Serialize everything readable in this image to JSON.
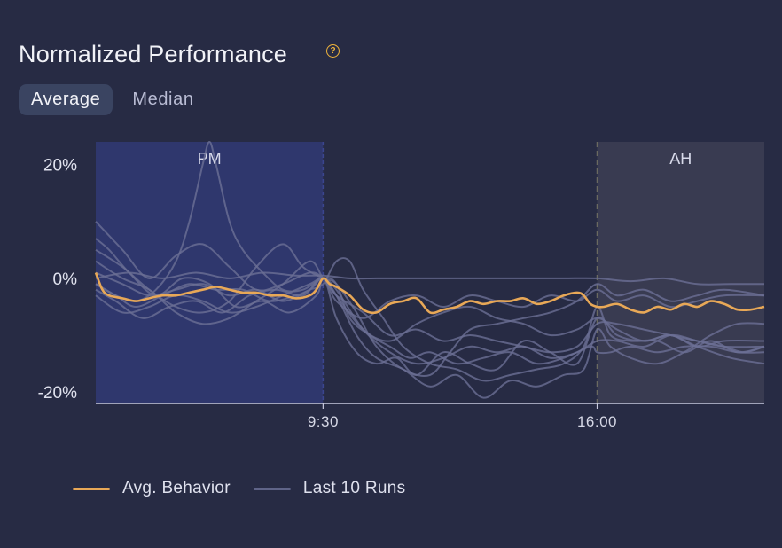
{
  "header": {
    "title": "Normalized Performance",
    "help_icon": "help-circle-icon"
  },
  "tabs": [
    {
      "label": "Average",
      "active": true
    },
    {
      "label": "Median",
      "active": false
    }
  ],
  "colors": {
    "background": "#272b44",
    "avg_line": "#e8a857",
    "runs_line": "#6b6f95",
    "pm_band": "#2f3870",
    "ah_band": "#3a3c52",
    "axis": "#c9cbe0"
  },
  "chart_data": {
    "type": "line",
    "title": "Normalized Performance",
    "xlabel": "",
    "ylabel": "",
    "ylim": [
      -22,
      24
    ],
    "xlim": [
      0,
      100
    ],
    "yticks": [
      {
        "value": 20,
        "label": "20%"
      },
      {
        "value": 0,
        "label": "0%"
      },
      {
        "value": -20,
        "label": "-20%"
      }
    ],
    "xticks": [
      {
        "value": 34,
        "label": "9:30"
      },
      {
        "value": 75,
        "label": "16:00"
      }
    ],
    "regions": [
      {
        "label": "PM",
        "x_start": 0,
        "x_end": 34
      },
      {
        "label": "AH",
        "x_start": 75,
        "x_end": 100
      }
    ],
    "legend": [
      "Avg. Behavior",
      "Last 10 Runs"
    ],
    "series": [
      {
        "name": "Avg. Behavior",
        "kind": "avg",
        "x": [
          0,
          1,
          2,
          4,
          6,
          8,
          10,
          12,
          14,
          16,
          18,
          20,
          22,
          24,
          26,
          28,
          30,
          32,
          33,
          34,
          35,
          36,
          38,
          40,
          42,
          44,
          46,
          48,
          50,
          52,
          54,
          56,
          58,
          60,
          62,
          64,
          66,
          68,
          70,
          72,
          73,
          74,
          75,
          76,
          78,
          80,
          82,
          84,
          86,
          88,
          90,
          92,
          94,
          96,
          98,
          100
        ],
        "y": [
          1,
          -2,
          -3,
          -3.5,
          -4,
          -3.5,
          -3,
          -3,
          -2.5,
          -2,
          -1.5,
          -2,
          -2.5,
          -2.5,
          -3,
          -3,
          -3.5,
          -3,
          -2,
          0,
          -1,
          -1.5,
          -3,
          -5.5,
          -6,
          -4.5,
          -4,
          -3.5,
          -6,
          -5.5,
          -5,
          -4,
          -4.5,
          -4,
          -4,
          -3.5,
          -4.5,
          -4,
          -3,
          -2.5,
          -3,
          -4.5,
          -5,
          -5,
          -4.5,
          -5.5,
          -6,
          -5,
          -5.5,
          -4.5,
          -5,
          -4,
          -4.5,
          -5.5,
          -5.5,
          -5
        ]
      },
      {
        "name": "Run 1",
        "kind": "run",
        "x": [
          0,
          3,
          6,
          9,
          12,
          14,
          16,
          17,
          18,
          20,
          22,
          25,
          28,
          31,
          34,
          36,
          38,
          41,
          44,
          47,
          50,
          54,
          58,
          62,
          66,
          70,
          74,
          75,
          77,
          80,
          84,
          88,
          92,
          96,
          100
        ],
        "y": [
          -1,
          -3,
          -4,
          -2,
          3,
          10,
          20,
          24,
          20,
          10,
          5,
          1,
          -2,
          -2,
          0,
          -1,
          -7,
          -10,
          -12,
          -14,
          -13,
          -15,
          -14,
          -13,
          -15,
          -14,
          -12,
          -13,
          -13,
          -12,
          -13,
          -12,
          -12,
          -13,
          -13
        ]
      },
      {
        "name": "Run 2",
        "kind": "run",
        "x": [
          0,
          4,
          8,
          12,
          16,
          20,
          24,
          28,
          32,
          34,
          36,
          40,
          44,
          48,
          52,
          56,
          60,
          64,
          68,
          72,
          75,
          78,
          82,
          86,
          90,
          94,
          97,
          100
        ],
        "y": [
          10,
          5,
          0,
          4,
          6,
          2,
          -2,
          -1,
          1,
          0,
          -3,
          -6,
          -10,
          -9,
          -11,
          -10,
          -11,
          -12,
          -13,
          -12,
          -8,
          -8,
          -9,
          -10,
          -11,
          -12,
          -13,
          -12
        ]
      },
      {
        "name": "Run 3",
        "kind": "run",
        "x": [
          0,
          5,
          10,
          15,
          20,
          25,
          30,
          34,
          38,
          42,
          46,
          50,
          55,
          60,
          65,
          70,
          75,
          80,
          85,
          90,
          95,
          100
        ],
        "y": [
          0,
          1,
          0,
          1,
          0,
          1,
          0.5,
          0.5,
          0,
          0,
          0,
          0,
          0,
          0,
          0,
          0,
          0,
          -0.5,
          0,
          -1,
          -1,
          -1
        ]
      },
      {
        "name": "Run 4",
        "kind": "run",
        "x": [
          0,
          4,
          8,
          12,
          16,
          20,
          24,
          28,
          31,
          34,
          36,
          39,
          42,
          46,
          50,
          53,
          56,
          60,
          64,
          68,
          72,
          75,
          78,
          82,
          86,
          90,
          94,
          100
        ],
        "y": [
          5,
          2,
          -2,
          -5,
          -6,
          -4,
          2,
          6,
          2,
          0,
          -1,
          -6,
          -12,
          -16,
          -17,
          -13,
          -9,
          -8,
          -7,
          -6,
          -4,
          -1,
          -3,
          -2,
          -4,
          -3,
          -2,
          -3
        ]
      },
      {
        "name": "Run 5",
        "kind": "run",
        "x": [
          0,
          4,
          8,
          12,
          16,
          20,
          24,
          28,
          32,
          34,
          36,
          40,
          44,
          48,
          52,
          56,
          60,
          64,
          68,
          72,
          75,
          78,
          82,
          86,
          90,
          94,
          100
        ],
        "y": [
          -3,
          -6,
          -5,
          -3,
          -4,
          -6,
          -5,
          -3,
          -1,
          0,
          -2,
          -9,
          -13,
          -15,
          -14,
          -12,
          -13,
          -12,
          -14,
          -13,
          -11,
          -11,
          -12,
          -10,
          -11,
          -12,
          -12
        ]
      },
      {
        "name": "Run 6",
        "kind": "run",
        "x": [
          0,
          3,
          7,
          11,
          15,
          19,
          23,
          27,
          31,
          34,
          36,
          39,
          42,
          45,
          48,
          52,
          56,
          60,
          64,
          68,
          72,
          75,
          78,
          82,
          86,
          90,
          95,
          100
        ],
        "y": [
          -2,
          -4,
          -7,
          -5,
          -4,
          -6,
          -3,
          -2,
          -3,
          0,
          -7,
          -13,
          -15,
          -14,
          -17,
          -13,
          -15,
          -16,
          -11,
          -13,
          -15,
          -7,
          -10,
          -11,
          -10,
          -12,
          -14,
          -15
        ]
      },
      {
        "name": "Run 7",
        "kind": "run",
        "x": [
          0,
          4,
          8,
          12,
          16,
          20,
          24,
          28,
          32,
          34,
          36,
          40,
          44,
          48,
          52,
          56,
          60,
          64,
          68,
          72,
          75,
          78,
          82,
          86,
          90,
          94,
          100
        ],
        "y": [
          1,
          -1,
          -3,
          -2,
          -1,
          -3,
          -2,
          -4,
          -2,
          0,
          -4,
          -7,
          -4,
          -3,
          -5,
          -3,
          -4,
          -5,
          -3,
          -4,
          -2,
          -4,
          -3,
          -5,
          -4,
          -3,
          -3
        ]
      },
      {
        "name": "Run 8",
        "kind": "run",
        "x": [
          0,
          3,
          6,
          10,
          14,
          18,
          22,
          26,
          30,
          32,
          34,
          36,
          38,
          40,
          43,
          46,
          50,
          54,
          58,
          62,
          66,
          70,
          73,
          75,
          77,
          80,
          84,
          88,
          92,
          96,
          100
        ],
        "y": [
          -1,
          -3,
          -5,
          -3,
          -1,
          -2,
          -2,
          -4,
          -3,
          -2,
          -1,
          3,
          3,
          -2,
          -7,
          -12,
          -15,
          -16,
          -18,
          -17,
          -16,
          -15,
          -12,
          -5,
          -10,
          -11,
          -11,
          -13,
          -11,
          -13,
          -12
        ]
      },
      {
        "name": "Run 9",
        "kind": "run",
        "x": [
          0,
          2,
          5,
          9,
          13,
          17,
          21,
          25,
          29,
          33,
          34,
          36,
          39,
          42,
          46,
          50,
          54,
          58,
          62,
          66,
          70,
          73,
          75,
          77,
          80,
          84,
          88,
          92,
          96,
          100
        ],
        "y": [
          7,
          5,
          1,
          -3,
          0,
          -1,
          -5,
          -4,
          -6,
          -3,
          0,
          -3,
          -10,
          -14,
          -16,
          -19,
          -17,
          -21,
          -18,
          -19,
          -17,
          -16,
          -9,
          -12,
          -14,
          -15,
          -13,
          -10,
          -8,
          -8
        ]
      },
      {
        "name": "Run 10",
        "kind": "run",
        "x": [
          0,
          4,
          8,
          12,
          16,
          20,
          24,
          28,
          32,
          34,
          36,
          40,
          44,
          48,
          52,
          56,
          60,
          64,
          68,
          72,
          75,
          78,
          82,
          86,
          90,
          94,
          100
        ],
        "y": [
          3,
          0,
          -2,
          -6,
          -8,
          -7,
          -4,
          -1,
          3,
          0,
          -3,
          -9,
          -11,
          -8,
          -6,
          -5,
          -7,
          -8,
          -10,
          -9,
          -7,
          -9,
          -11,
          -10,
          -12,
          -11,
          -11
        ]
      }
    ]
  }
}
